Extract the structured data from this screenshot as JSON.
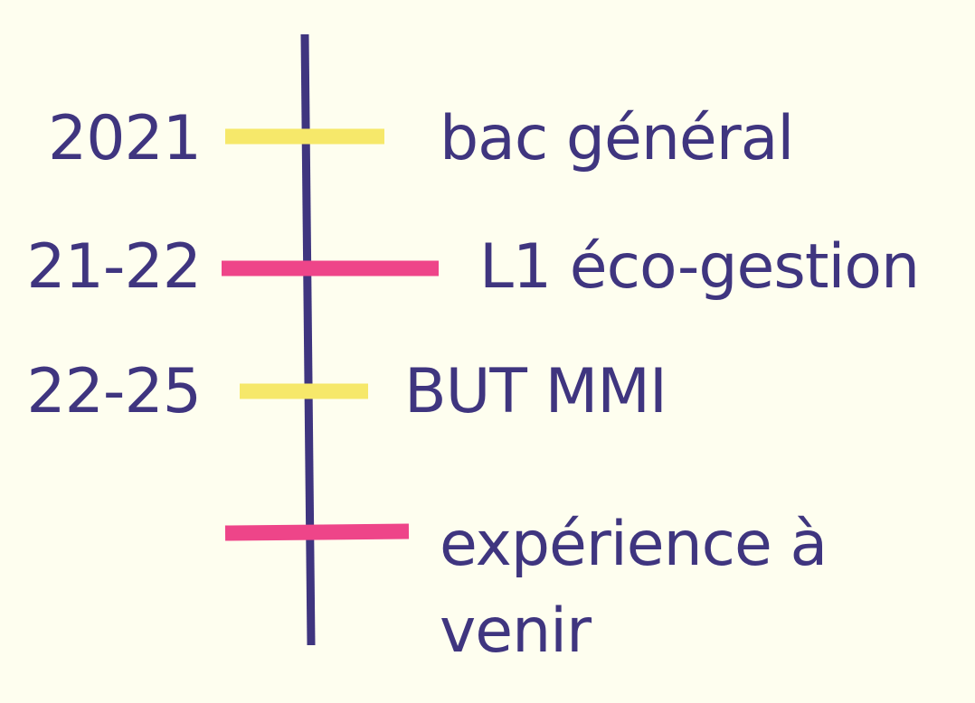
{
  "colors": {
    "background": "#fefeef",
    "text": "#3f357f",
    "axis": "#3f357f",
    "yellow": "#f6e86a",
    "pink": "#ee4589"
  },
  "timeline": {
    "entries": [
      {
        "date": "2021",
        "event": "bac général",
        "marker_color": "yellow"
      },
      {
        "date": "21-22",
        "event": "L1 éco-gestion",
        "marker_color": "pink"
      },
      {
        "date": "22-25",
        "event": "BUT MMI",
        "marker_color": "yellow"
      },
      {
        "date": "",
        "event": "expérience à venir",
        "marker_color": "pink"
      }
    ]
  }
}
